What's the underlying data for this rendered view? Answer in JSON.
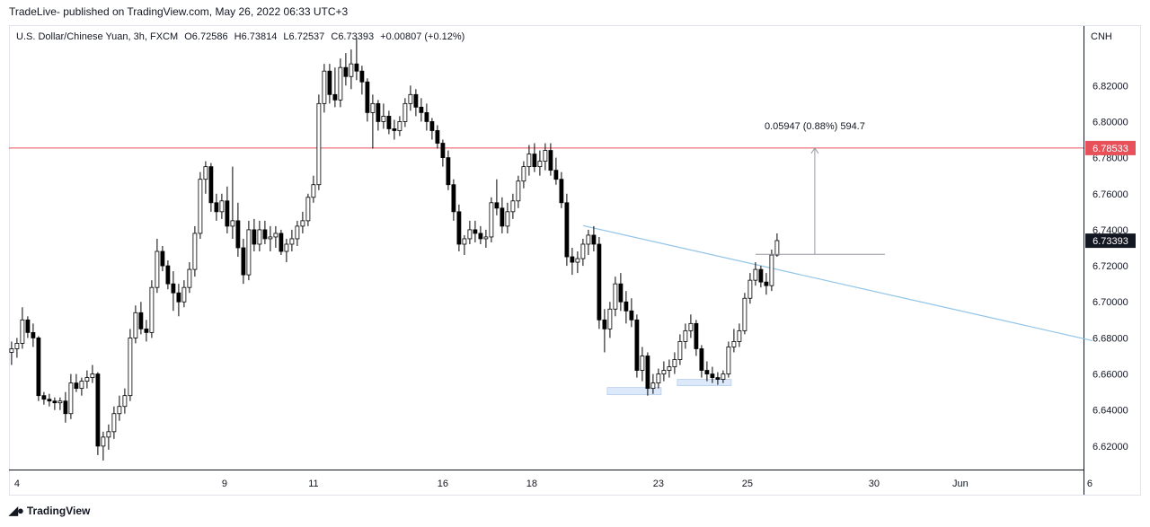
{
  "header": {
    "published": "TradeLive- published on TradingView.com, May 26, 2022 06:33 UTC+3"
  },
  "legend": {
    "symbol": "U.S. Dollar/Chinese Yuan, 3h, FXCM",
    "o_label": "O",
    "o_value": "6.72586",
    "h_label": "H",
    "h_value": "6.73814",
    "l_label": "L",
    "l_value": "6.72537",
    "c_label": "C",
    "c_value": "6.73393",
    "change": "+0.00807 (+0.12%)"
  },
  "footer": {
    "brand": "TradingView",
    "logo_icon": "tradingview-logo-icon"
  },
  "chart_data": {
    "type": "candlestick",
    "currency_label": "CNH",
    "ylim": [
      6.607,
      6.853
    ],
    "y_ticks": [
      "6.62000",
      "6.64000",
      "6.66000",
      "6.68000",
      "6.70000",
      "6.72000",
      "6.74000",
      "6.76000",
      "6.78000",
      "6.80000",
      "6.82000"
    ],
    "x_ticks": [
      {
        "label": "4",
        "t": 1
      },
      {
        "label": "9",
        "t": 39.5
      },
      {
        "label": "11",
        "t": 56
      },
      {
        "label": "16",
        "t": 80
      },
      {
        "label": "18",
        "t": 96.5
      },
      {
        "label": "23",
        "t": 120
      },
      {
        "label": "25",
        "t": 136.5
      },
      {
        "label": "30",
        "t": 160
      },
      {
        "label": "Jun",
        "t": 176
      },
      {
        "label": "6",
        "t": 200
      }
    ],
    "colors": {
      "up": "#ffffff",
      "down": "#000000",
      "wick": "#000000",
      "resistance": "#e8515a",
      "trendline": "#90c4e8",
      "measure": "#9598a1",
      "zone": "#dbe9fb"
    },
    "resistance": {
      "value": 6.78533,
      "label": "6.78533"
    },
    "current_price": {
      "value": 6.73393,
      "label": "6.73393"
    },
    "trendline": {
      "from": {
        "t": 106,
        "value": 6.7423
      },
      "to": {
        "t": 200.5,
        "value": 6.6785
      }
    },
    "measurement": {
      "t": 149,
      "from_value": 6.7264,
      "to_value": 6.78533,
      "base_t_start": 138,
      "base_t_end": 162,
      "label": "0.05947 (0.88%) 594.7"
    },
    "zones": [
      {
        "t_start": 110.5,
        "t_end": 120.5,
        "low": 6.6485,
        "high": 6.6525
      },
      {
        "t_start": 123.5,
        "t_end": 133.5,
        "low": 6.6535,
        "high": 6.657
      }
    ],
    "candles": [
      [
        6.672,
        6.678,
        6.665,
        6.674
      ],
      [
        6.674,
        6.68,
        6.669,
        6.677
      ],
      [
        6.677,
        6.697,
        6.674,
        6.69
      ],
      [
        6.69,
        6.692,
        6.68,
        6.683
      ],
      [
        6.683,
        6.688,
        6.675,
        6.68
      ],
      [
        6.68,
        6.681,
        6.645,
        6.648
      ],
      [
        6.648,
        6.65,
        6.643,
        6.646
      ],
      [
        6.646,
        6.649,
        6.642,
        6.645
      ],
      [
        6.645,
        6.647,
        6.64,
        6.644
      ],
      [
        6.644,
        6.647,
        6.64,
        6.645
      ],
      [
        6.645,
        6.65,
        6.633,
        6.638
      ],
      [
        6.638,
        6.66,
        6.635,
        6.655
      ],
      [
        6.655,
        6.66,
        6.65,
        6.652
      ],
      [
        6.652,
        6.658,
        6.648,
        6.656
      ],
      [
        6.656,
        6.662,
        6.652,
        6.658
      ],
      [
        6.658,
        6.665,
        6.655,
        6.66
      ],
      [
        6.66,
        6.661,
        6.615,
        6.62
      ],
      [
        6.62,
        6.628,
        6.612,
        6.625
      ],
      [
        6.625,
        6.632,
        6.618,
        6.628
      ],
      [
        6.628,
        6.642,
        6.624,
        6.638
      ],
      [
        6.638,
        6.648,
        6.634,
        6.642
      ],
      [
        6.642,
        6.652,
        6.638,
        6.648
      ],
      [
        6.648,
        6.685,
        6.645,
        6.68
      ],
      [
        6.68,
        6.698,
        6.677,
        6.694
      ],
      [
        6.694,
        6.7,
        6.682,
        6.685
      ],
      [
        6.685,
        6.69,
        6.678,
        6.683
      ],
      [
        6.683,
        6.712,
        6.68,
        6.708
      ],
      [
        6.708,
        6.735,
        6.705,
        6.728
      ],
      [
        6.728,
        6.731,
        6.717,
        6.72
      ],
      [
        6.72,
        6.723,
        6.707,
        6.71
      ],
      [
        6.71,
        6.717,
        6.695,
        6.705
      ],
      [
        6.705,
        6.71,
        6.692,
        6.7
      ],
      [
        6.7,
        6.712,
        6.697,
        6.708
      ],
      [
        6.708,
        6.722,
        6.705,
        6.718
      ],
      [
        6.718,
        6.742,
        6.714,
        6.738
      ],
      [
        6.738,
        6.772,
        6.735,
        6.768
      ],
      [
        6.768,
        6.778,
        6.76,
        6.775
      ],
      [
        6.775,
        6.777,
        6.75,
        6.755
      ],
      [
        6.755,
        6.76,
        6.745,
        6.75
      ],
      [
        6.75,
        6.76,
        6.746,
        6.756
      ],
      [
        6.756,
        6.764,
        6.738,
        6.742
      ],
      [
        6.742,
        6.775,
        6.735,
        6.745
      ],
      [
        6.745,
        6.755,
        6.725,
        6.73
      ],
      [
        6.73,
        6.735,
        6.71,
        6.715
      ],
      [
        6.715,
        6.745,
        6.712,
        6.74
      ],
      [
        6.74,
        6.746,
        6.728,
        6.732
      ],
      [
        6.732,
        6.745,
        6.728,
        6.74
      ],
      [
        6.74,
        6.745,
        6.732,
        6.735
      ],
      [
        6.735,
        6.742,
        6.728,
        6.736
      ],
      [
        6.736,
        6.742,
        6.73,
        6.738
      ],
      [
        6.738,
        6.74,
        6.726,
        6.728
      ],
      [
        6.728,
        6.735,
        6.722,
        6.732
      ],
      [
        6.732,
        6.74,
        6.728,
        6.735
      ],
      [
        6.735,
        6.745,
        6.731,
        6.742
      ],
      [
        6.742,
        6.75,
        6.738,
        6.745
      ],
      [
        6.745,
        6.76,
        6.742,
        6.758
      ],
      [
        6.758,
        6.77,
        6.755,
        6.765
      ],
      [
        6.765,
        6.815,
        6.762,
        6.81
      ],
      [
        6.81,
        6.832,
        6.805,
        6.828
      ],
      [
        6.828,
        6.832,
        6.81,
        6.815
      ],
      [
        6.815,
        6.83,
        6.808,
        6.812
      ],
      [
        6.812,
        6.835,
        6.808,
        6.83
      ],
      [
        6.83,
        6.838,
        6.82,
        6.825
      ],
      [
        6.825,
        6.84,
        6.818,
        6.832
      ],
      [
        6.832,
        6.846,
        6.823,
        6.828
      ],
      [
        6.828,
        6.831,
        6.815,
        6.822
      ],
      [
        6.822,
        6.824,
        6.8,
        6.805
      ],
      [
        6.805,
        6.815,
        6.785,
        6.81
      ],
      [
        6.81,
        6.812,
        6.795,
        6.8
      ],
      [
        6.8,
        6.81,
        6.796,
        6.803
      ],
      [
        6.803,
        6.806,
        6.793,
        6.796
      ],
      [
        6.796,
        6.801,
        6.79,
        6.795
      ],
      [
        6.795,
        6.803,
        6.792,
        6.8
      ],
      [
        6.8,
        6.813,
        6.797,
        6.81
      ],
      [
        6.81,
        6.82,
        6.806,
        6.815
      ],
      [
        6.815,
        6.818,
        6.803,
        6.808
      ],
      [
        6.808,
        6.813,
        6.8,
        6.805
      ],
      [
        6.805,
        6.81,
        6.795,
        6.8
      ],
      [
        6.8,
        6.802,
        6.79,
        6.795
      ],
      [
        6.795,
        6.798,
        6.785,
        6.788
      ],
      [
        6.788,
        6.79,
        6.775,
        6.78
      ],
      [
        6.78,
        6.784,
        6.762,
        6.765
      ],
      [
        6.765,
        6.768,
        6.745,
        6.75
      ],
      [
        6.75,
        6.754,
        6.728,
        6.732
      ],
      [
        6.732,
        6.737,
        6.726,
        6.735
      ],
      [
        6.735,
        6.745,
        6.732,
        6.74
      ],
      [
        6.74,
        6.745,
        6.733,
        6.738
      ],
      [
        6.738,
        6.742,
        6.732,
        6.735
      ],
      [
        6.735,
        6.74,
        6.73,
        6.736
      ],
      [
        6.736,
        6.758,
        6.733,
        6.755
      ],
      [
        6.755,
        6.768,
        6.748,
        6.752
      ],
      [
        6.752,
        6.758,
        6.738,
        6.742
      ],
      [
        6.742,
        6.755,
        6.738,
        6.75
      ],
      [
        6.75,
        6.76,
        6.746,
        6.756
      ],
      [
        6.756,
        6.77,
        6.752,
        6.767
      ],
      [
        6.767,
        6.778,
        6.763,
        6.775
      ],
      [
        6.775,
        6.787,
        6.77,
        6.782
      ],
      [
        6.782,
        6.788,
        6.772,
        6.775
      ],
      [
        6.775,
        6.784,
        6.77,
        6.778
      ],
      [
        6.778,
        6.788,
        6.773,
        6.784
      ],
      [
        6.784,
        6.788,
        6.77,
        6.773
      ],
      [
        6.773,
        6.78,
        6.765,
        6.768
      ],
      [
        6.768,
        6.772,
        6.752,
        6.755
      ],
      [
        6.755,
        6.76,
        6.72,
        6.725
      ],
      [
        6.725,
        6.73,
        6.715,
        6.722
      ],
      [
        6.722,
        6.728,
        6.716,
        6.724
      ],
      [
        6.724,
        6.735,
        6.72,
        6.732
      ],
      [
        6.732,
        6.74,
        6.726,
        6.737
      ],
      [
        6.737,
        6.742,
        6.728,
        6.732
      ],
      [
        6.732,
        6.736,
        6.685,
        6.69
      ],
      [
        6.69,
        6.696,
        6.672,
        6.685
      ],
      [
        6.685,
        6.7,
        6.68,
        6.696
      ],
      [
        6.696,
        6.714,
        6.692,
        6.71
      ],
      [
        6.71,
        6.716,
        6.695,
        6.7
      ],
      [
        6.7,
        6.706,
        6.688,
        6.695
      ],
      [
        6.695,
        6.702,
        6.686,
        6.69
      ],
      [
        6.69,
        6.693,
        6.658,
        6.662
      ],
      [
        6.662,
        6.675,
        6.656,
        6.67
      ],
      [
        6.67,
        6.672,
        6.648,
        6.652
      ],
      [
        6.652,
        6.66,
        6.649,
        6.655
      ],
      [
        6.655,
        6.663,
        6.652,
        6.66
      ],
      [
        6.66,
        6.667,
        6.656,
        6.662
      ],
      [
        6.662,
        6.668,
        6.658,
        6.664
      ],
      [
        6.664,
        6.672,
        6.66,
        6.668
      ],
      [
        6.668,
        6.682,
        6.665,
        6.678
      ],
      [
        6.678,
        6.688,
        6.674,
        6.684
      ],
      [
        6.684,
        6.693,
        6.68,
        6.688
      ],
      [
        6.688,
        6.69,
        6.67,
        6.674
      ],
      [
        6.674,
        6.676,
        6.658,
        6.662
      ],
      [
        6.662,
        6.667,
        6.656,
        6.66
      ],
      [
        6.66,
        6.664,
        6.655,
        6.658
      ],
      [
        6.658,
        6.661,
        6.654,
        6.657
      ],
      [
        6.657,
        6.662,
        6.655,
        6.66
      ],
      [
        6.66,
        6.678,
        6.658,
        6.675
      ],
      [
        6.675,
        6.685,
        6.672,
        6.678
      ],
      [
        6.678,
        6.688,
        6.675,
        6.684
      ],
      [
        6.684,
        6.705,
        6.682,
        6.702
      ],
      [
        6.702,
        6.716,
        6.699,
        6.712
      ],
      [
        6.712,
        6.722,
        6.709,
        6.718
      ],
      [
        6.718,
        6.72,
        6.708,
        6.711
      ],
      [
        6.711,
        6.716,
        6.704,
        6.709
      ],
      [
        6.709,
        6.729,
        6.706,
        6.726
      ],
      [
        6.726,
        6.738,
        6.725,
        6.734
      ]
    ]
  }
}
